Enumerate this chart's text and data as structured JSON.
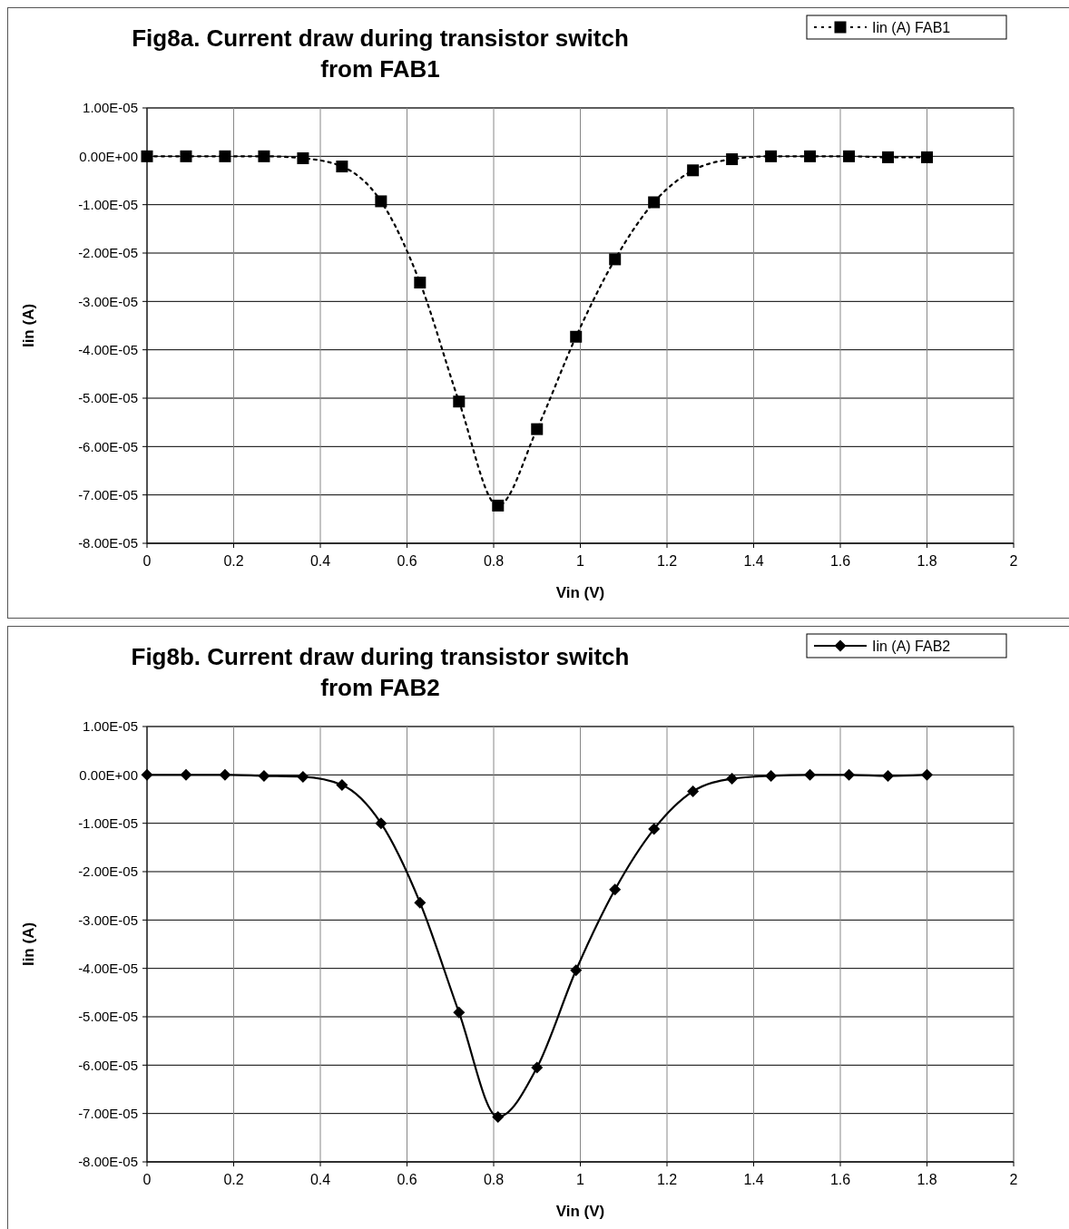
{
  "chart_data": [
    {
      "type": "line",
      "title": "Fig8a. Current draw during transistor switch from FAB1",
      "xlabel": "Vin (V)",
      "ylabel": "Iin (A)",
      "x": [
        0,
        0.09,
        0.18,
        0.27,
        0.36,
        0.45,
        0.54,
        0.63,
        0.72,
        0.81,
        0.9,
        0.99,
        1.08,
        1.17,
        1.26,
        1.35,
        1.44,
        1.53,
        1.62,
        1.71,
        1.8
      ],
      "series": [
        {
          "name": "Iin (A) FAB1",
          "color": "#000000",
          "marker": "square",
          "line_style": "dotted",
          "values": [
            0,
            0,
            0,
            0,
            -4e-07,
            -2.1e-06,
            -9.3e-06,
            -2.61e-05,
            -5.07e-05,
            -7.22e-05,
            -5.64e-05,
            -3.73e-05,
            -2.13e-05,
            -9.5e-06,
            -2.9e-06,
            -6e-07,
            0,
            0,
            0,
            -2e-07,
            -2e-07
          ]
        }
      ],
      "xlim": [
        0,
        2
      ],
      "xticks": [
        0,
        0.2,
        0.4,
        0.6,
        0.8,
        1,
        1.2,
        1.4,
        1.6,
        1.8,
        2
      ],
      "ylim": [
        -8e-05,
        1e-05
      ],
      "yticks": [
        {
          "value": 1e-05,
          "label": "1.00E-05"
        },
        {
          "value": 0,
          "label": "0.00E+00"
        },
        {
          "value": -1e-05,
          "label": "-1.00E-05"
        },
        {
          "value": -2e-05,
          "label": "-2.00E-05"
        },
        {
          "value": -3e-05,
          "label": "-3.00E-05"
        },
        {
          "value": -4e-05,
          "label": "-4.00E-05"
        },
        {
          "value": -5e-05,
          "label": "-5.00E-05"
        },
        {
          "value": -6e-05,
          "label": "-6.00E-05"
        },
        {
          "value": -7e-05,
          "label": "-7.00E-05"
        },
        {
          "value": -8e-05,
          "label": "-8.00E-05"
        }
      ],
      "grid": true,
      "legend": "top right"
    },
    {
      "type": "line",
      "title": "Fig8b. Current draw during transistor switch from FAB2",
      "xlabel": "Vin (V)",
      "ylabel": "Iin (A)",
      "x": [
        0,
        0.09,
        0.18,
        0.27,
        0.36,
        0.45,
        0.54,
        0.63,
        0.72,
        0.81,
        0.9,
        0.99,
        1.08,
        1.17,
        1.26,
        1.35,
        1.44,
        1.53,
        1.62,
        1.71,
        1.8
      ],
      "series": [
        {
          "name": "Iin (A) FAB2",
          "color": "#000000",
          "marker": "diamond",
          "line_style": "solid",
          "values": [
            0,
            0,
            0,
            -2e-07,
            -4e-07,
            -2.1e-06,
            -1e-05,
            -2.64e-05,
            -4.91e-05,
            -7.07e-05,
            -6.05e-05,
            -4.04e-05,
            -2.37e-05,
            -1.12e-05,
            -3.4e-06,
            -8e-07,
            -2e-07,
            0,
            0,
            -2e-07,
            0
          ]
        }
      ],
      "xlim": [
        0,
        2
      ],
      "xticks": [
        0,
        0.2,
        0.4,
        0.6,
        0.8,
        1,
        1.2,
        1.4,
        1.6,
        1.8,
        2
      ],
      "ylim": [
        -8e-05,
        1e-05
      ],
      "yticks": [
        {
          "value": 1e-05,
          "label": "1.00E-05"
        },
        {
          "value": 0,
          "label": "0.00E+00"
        },
        {
          "value": -1e-05,
          "label": "-1.00E-05"
        },
        {
          "value": -2e-05,
          "label": "-2.00E-05"
        },
        {
          "value": -3e-05,
          "label": "-3.00E-05"
        },
        {
          "value": -4e-05,
          "label": "-4.00E-05"
        },
        {
          "value": -5e-05,
          "label": "-5.00E-05"
        },
        {
          "value": -6e-05,
          "label": "-6.00E-05"
        },
        {
          "value": -7e-05,
          "label": "-7.00E-05"
        },
        {
          "value": -8e-05,
          "label": "-8.00E-05"
        }
      ],
      "grid": true,
      "legend": "top right"
    }
  ]
}
